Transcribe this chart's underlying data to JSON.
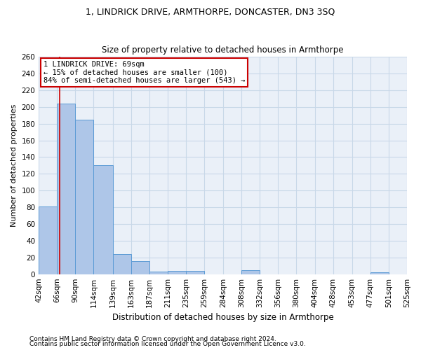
{
  "title": "1, LINDRICK DRIVE, ARMTHORPE, DONCASTER, DN3 3SQ",
  "subtitle": "Size of property relative to detached houses in Armthorpe",
  "xlabel": "Distribution of detached houses by size in Armthorpe",
  "ylabel": "Number of detached properties",
  "footnote1": "Contains HM Land Registry data © Crown copyright and database right 2024.",
  "footnote2": "Contains public sector information licensed under the Open Government Licence v3.0.",
  "bin_edges": [
    42,
    66,
    90,
    114,
    139,
    163,
    187,
    211,
    235,
    259,
    284,
    308,
    332,
    356,
    380,
    404,
    428,
    453,
    477,
    501,
    525
  ],
  "bar_heights": [
    81,
    204,
    185,
    130,
    24,
    16,
    3,
    4,
    4,
    0,
    0,
    5,
    0,
    0,
    0,
    0,
    0,
    0,
    2,
    0
  ],
  "bar_color": "#aec6e8",
  "bar_edge_color": "#5b9bd5",
  "grid_color": "#c8d8e8",
  "background_color": "#eaf0f8",
  "property_line_x": 69,
  "annotation_text": "1 LINDRICK DRIVE: 69sqm\n← 15% of detached houses are smaller (100)\n84% of semi-detached houses are larger (543) →",
  "annotation_box_color": "#ffffff",
  "annotation_box_edge": "#cc0000",
  "property_line_color": "#cc0000",
  "ylim": [
    0,
    260
  ],
  "yticks": [
    0,
    20,
    40,
    60,
    80,
    100,
    120,
    140,
    160,
    180,
    200,
    220,
    240,
    260
  ],
  "title_fontsize": 9,
  "subtitle_fontsize": 8.5,
  "ylabel_fontsize": 8,
  "xlabel_fontsize": 8.5,
  "footnote_fontsize": 6.5,
  "tick_fontsize": 7.5,
  "annotation_fontsize": 7.5
}
